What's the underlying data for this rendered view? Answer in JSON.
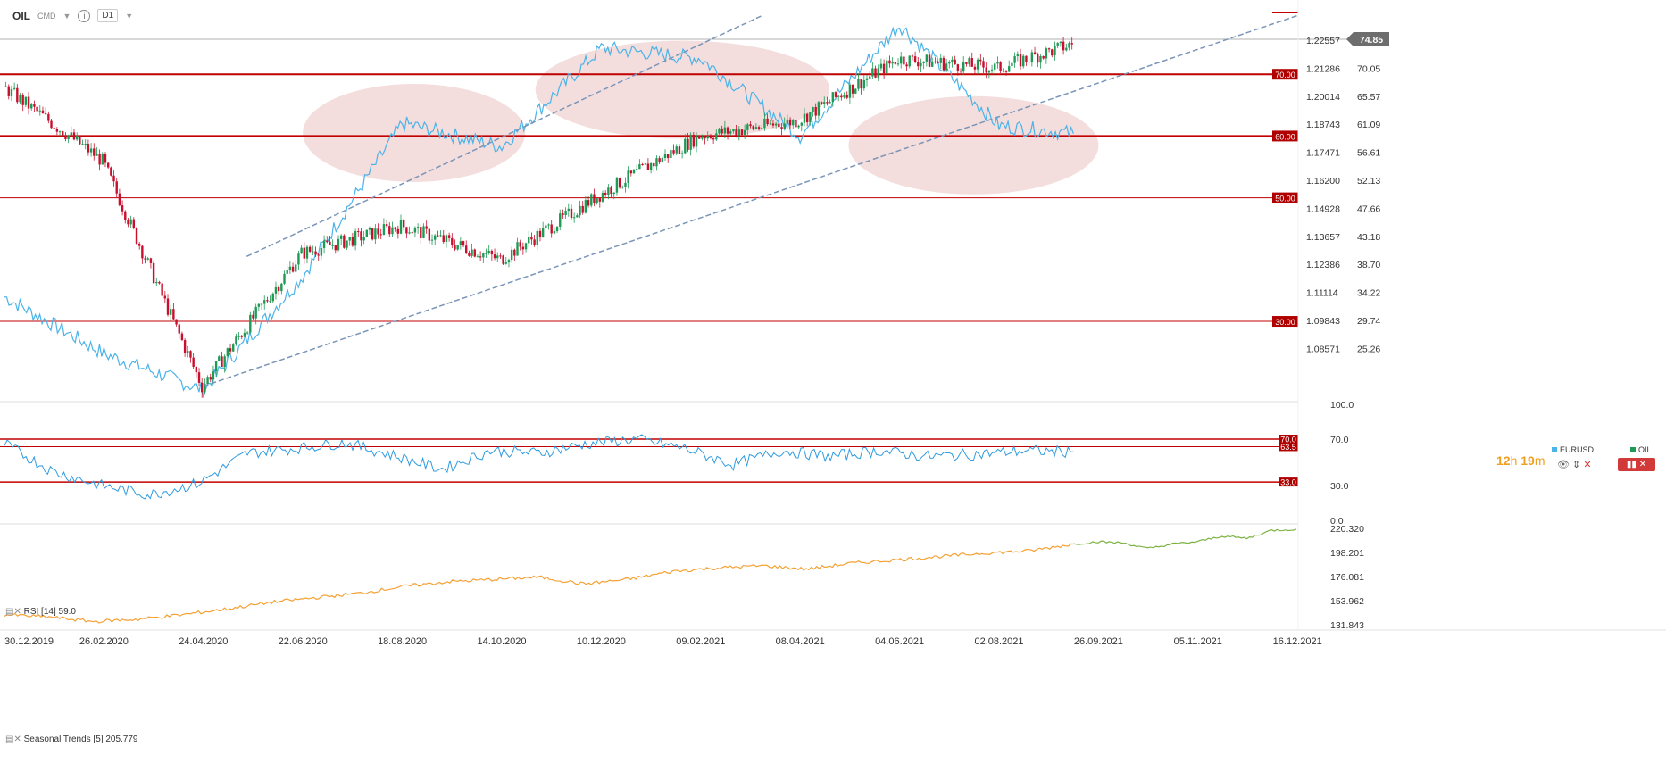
{
  "toolbar": {
    "symbol": "OIL",
    "symbol_type": "CMD",
    "timeframe": "D1"
  },
  "timer": {
    "hours": "12",
    "h_unit": "h",
    "minutes": "19",
    "m_unit": "m"
  },
  "legend": {
    "eurusd": "EURUSD",
    "oil": "OIL"
  },
  "price_badge": "74.85",
  "rsi_label": "RSI [14] 59.0",
  "seasonal_label": "Seasonal Trends [5] 205.779",
  "colors": {
    "eurusd": "#4ab3e8",
    "oil_up": "#1f9a55",
    "oil_down": "#c8102e",
    "hline": "#c00000",
    "rsi": "#2f9be0",
    "seasonal_hist": "#f5a033",
    "seasonal_proj": "#7cb342",
    "ellipse": "#f2d7d7"
  },
  "chart_data": [
    {
      "type": "line",
      "title": "OIL / EURUSD D1",
      "x_ticks": [
        "30.12.2019",
        "26.02.2020",
        "24.04.2020",
        "22.06.2020",
        "18.08.2020",
        "14.10.2020",
        "10.12.2020",
        "09.02.2021",
        "08.04.2021",
        "04.06.2021",
        "02.08.2021",
        "26.09.2021",
        "05.11.2021",
        "16.12.2021"
      ],
      "left_axis_eurusd_ticks": [
        "1.22557",
        "1.21286",
        "1.20014",
        "1.18743",
        "1.17471",
        "1.16200",
        "1.14928",
        "1.13657",
        "1.12386",
        "1.11114",
        "1.09843",
        "1.08571"
      ],
      "right_axis_oil_ticks": [
        "74.85",
        "70.05",
        "65.57",
        "61.09",
        "56.61",
        "52.13",
        "47.66",
        "43.18",
        "38.70",
        "34.22",
        "29.74",
        "25.26"
      ],
      "ylim_oil": [
        17,
        80
      ],
      "horizontal_levels": [
        {
          "label": "70.00",
          "value": 70.0
        },
        {
          "label": "60.00",
          "value": 60.0
        },
        {
          "label": "50.00",
          "value": 50.0
        },
        {
          "label": "30.00",
          "value": 30.0
        }
      ],
      "series": [
        {
          "name": "OIL",
          "style": "candlestick",
          "points_dates": [
            "30.12.2019",
            "26.02.2020",
            "24.04.2020",
            "22.06.2020",
            "18.08.2020",
            "14.10.2020",
            "10.12.2020",
            "09.02.2021",
            "08.04.2021",
            "04.06.2021",
            "02.08.2021",
            "08.09.2021"
          ],
          "values": [
            68.0,
            56.0,
            19.5,
            41.0,
            45.5,
            40.0,
            50.5,
            60.0,
            62.5,
            72.5,
            71.0,
            74.85
          ]
        },
        {
          "name": "EURUSD",
          "style": "line",
          "points_dates": [
            "30.12.2019",
            "26.02.2020",
            "24.04.2020",
            "22.06.2020",
            "18.08.2020",
            "14.10.2020",
            "10.12.2020",
            "09.02.2021",
            "08.04.2021",
            "04.06.2021",
            "02.08.2021",
            "08.09.2021"
          ],
          "values": [
            1.12,
            1.098,
            1.084,
            1.128,
            1.187,
            1.178,
            1.216,
            1.212,
            1.182,
            1.225,
            1.186,
            1.183
          ]
        }
      ],
      "trendlines": [
        {
          "name": "lower-channel",
          "from": [
            "24.04.2020",
            19.5
          ],
          "to": [
            "16.12.2021",
            79.5
          ]
        },
        {
          "name": "upper-channel",
          "from": [
            "18.05.2020",
            40.5
          ],
          "to": [
            "12.03.2021",
            79.5
          ]
        }
      ],
      "highlight_zones": [
        {
          "from": "22.06.2020",
          "to": "26.10.2020",
          "center": 60.5
        },
        {
          "from": "01.11.2020",
          "to": "20.04.2021",
          "center": 67.5
        },
        {
          "from": "01.05.2021",
          "to": "26.09.2021",
          "center": 58.5
        }
      ]
    },
    {
      "type": "line",
      "title": "RSI [14]",
      "ylim": [
        0,
        100
      ],
      "y_ticks": [
        "100.0",
        "70.0",
        "30.0",
        "0.0"
      ],
      "levels": [
        {
          "label": "70.0",
          "value": 70.0
        },
        {
          "label": "63.5",
          "value": 63.5
        },
        {
          "label": "33.0",
          "value": 33.0
        }
      ],
      "last_value": 59.0,
      "series": [
        {
          "name": "RSI",
          "values": [
            66,
            42,
            30,
            22,
            32,
            58,
            62,
            67,
            56,
            44,
            60,
            58,
            66,
            70,
            62,
            48,
            60,
            55,
            60,
            55,
            57,
            60,
            59
          ]
        }
      ]
    },
    {
      "type": "line",
      "title": "Seasonal Trends [5]",
      "y_ticks": [
        "220.320",
        "198.201",
        "176.081",
        "153.962",
        "131.843"
      ],
      "ylim": [
        131.843,
        220.32
      ],
      "last_value": 205.779,
      "series": [
        {
          "name": "historical",
          "values": [
            143,
            141,
            137,
            139,
            143,
            148,
            154,
            158,
            162,
            168,
            172,
            174,
            176,
            170,
            174,
            181,
            184,
            186,
            183,
            188,
            191,
            194,
            197,
            199,
            205
          ]
        },
        {
          "name": "projection",
          "values": [
            205,
            207,
            206,
            201,
            205,
            207,
            212,
            210,
            217,
            218
          ]
        }
      ]
    }
  ]
}
